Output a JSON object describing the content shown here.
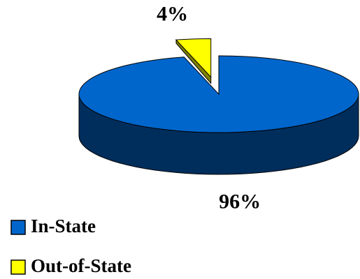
{
  "chart_data": {
    "type": "pie",
    "categories": [
      "In-State",
      "Out-of-State"
    ],
    "values": [
      96,
      4
    ],
    "value_labels": [
      "96%",
      "4%"
    ],
    "colors": [
      "#0066cc",
      "#ffff00"
    ],
    "legend": "bottom-left"
  }
}
